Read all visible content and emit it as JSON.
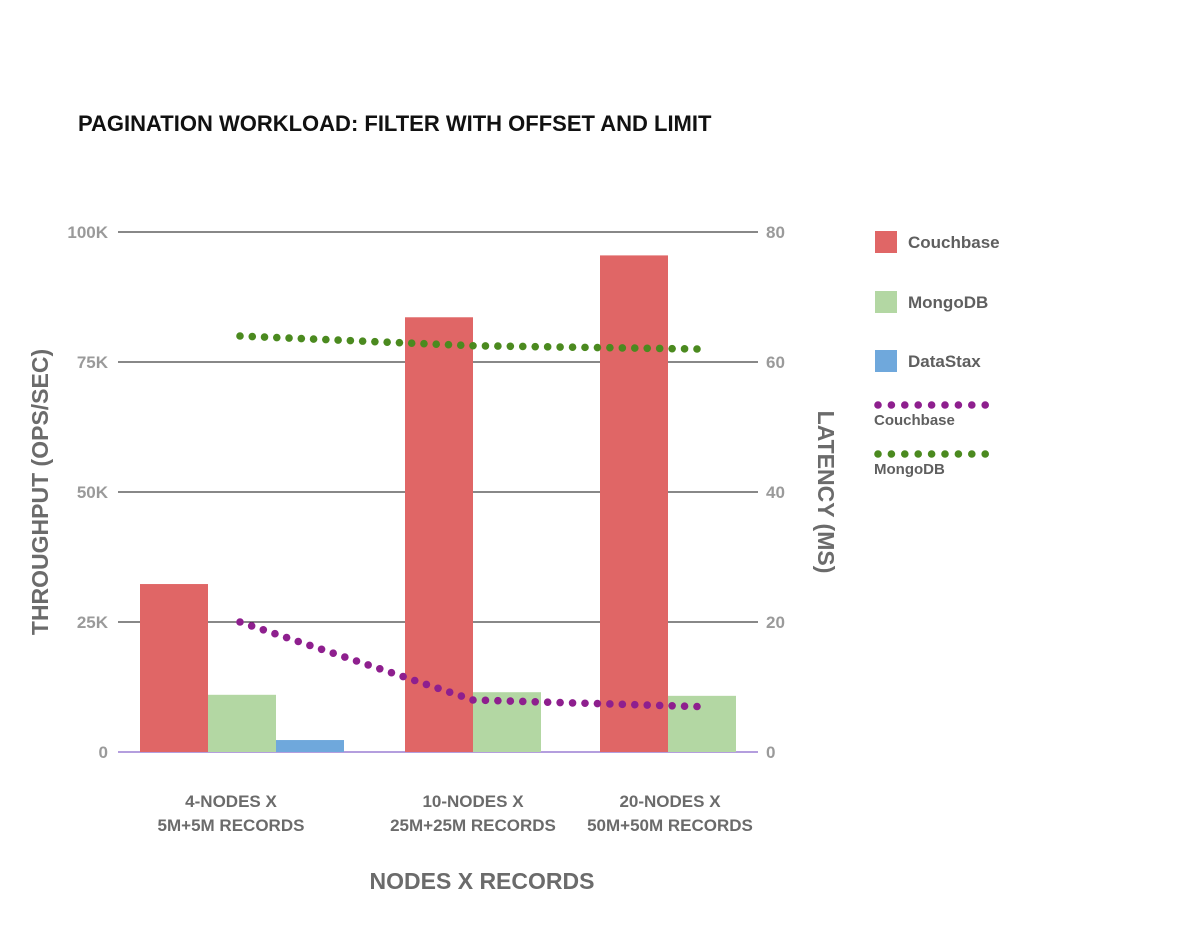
{
  "chart_data": {
    "type": "bar",
    "title": "PAGINATION WORKLOAD: FILTER WITH OFFSET AND LIMIT",
    "xlabel": "NODES X RECORDS",
    "ylabel": "THROUGHPUT (OPS/SEC)",
    "y2label": "LATENCY (MS)",
    "categories": [
      [
        "4-NODES X",
        "5M+5M RECORDS"
      ],
      [
        "10-NODES X",
        "25M+25M RECORDS"
      ],
      [
        "20-NODES X",
        "50M+50M RECORDS"
      ]
    ],
    "ylim": [
      0,
      100000
    ],
    "y2lim": [
      0,
      80
    ],
    "yticks": [
      0,
      25000,
      50000,
      75000,
      100000
    ],
    "ytick_labels": [
      "0",
      "25K",
      "50K",
      "75K",
      "100K"
    ],
    "y2ticks": [
      0,
      20,
      40,
      60,
      80
    ],
    "y2tick_labels": [
      "0",
      "20",
      "40",
      "60",
      "80"
    ],
    "grid": true,
    "legend_position": "right",
    "series": [
      {
        "name": "Couchbase",
        "kind": "bar",
        "color": "#e06666",
        "values": [
          32300,
          83600,
          95500
        ]
      },
      {
        "name": "MongoDB",
        "kind": "bar",
        "color": "#b3d7a3",
        "values": [
          11000,
          11500,
          10800
        ]
      },
      {
        "name": "DataStax",
        "kind": "bar",
        "color": "#6fa8dc",
        "values": [
          2300,
          null,
          null
        ]
      }
    ],
    "lines": [
      {
        "name": "Couchbase",
        "axis": "right",
        "color": "#8e1f8e",
        "style": "dotted",
        "values": [
          20,
          8,
          7
        ]
      },
      {
        "name": "MongoDB",
        "axis": "right",
        "color": "#4b8a1f",
        "style": "dotted",
        "values": [
          64,
          62.5,
          62
        ]
      }
    ]
  }
}
